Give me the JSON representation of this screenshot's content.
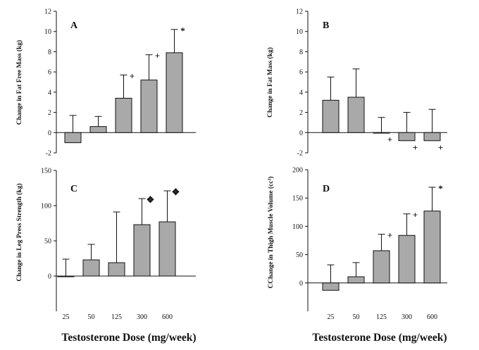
{
  "x_axis_titles": [
    "Testosterone Dose (mg/week)",
    "Testosterone Dose (mg/week)"
  ],
  "chart_data": [
    {
      "type": "bar",
      "panel_label": "A",
      "categories": [
        "25",
        "50",
        "125",
        "300",
        "600"
      ],
      "values": [
        -1.0,
        0.6,
        3.4,
        5.2,
        7.9
      ],
      "error_plus": [
        1.7,
        1.0,
        2.3,
        2.5,
        2.3
      ],
      "markers": [
        "",
        "",
        "+",
        "+",
        "*"
      ],
      "ylabel": "Change in Fat Free Mass (kg)",
      "ylim": [
        -2,
        12
      ],
      "yticks": [
        -2,
        0,
        2,
        4,
        6,
        8,
        10,
        12
      ],
      "show_xtick_labels": false,
      "bar_color": "#a9a9a9"
    },
    {
      "type": "bar",
      "panel_label": "B",
      "categories": [
        "25",
        "50",
        "125",
        "300",
        "600"
      ],
      "values": [
        3.2,
        3.5,
        0.0,
        -0.8,
        -0.8
      ],
      "error_plus": [
        2.3,
        2.8,
        1.5,
        2.0,
        2.3
      ],
      "markers": [
        "",
        "",
        "+",
        "+",
        "+"
      ],
      "ylabel": "Change in Fat Mass (kg)",
      "ylim": [
        -2,
        12
      ],
      "yticks": [
        -2,
        0,
        2,
        4,
        6,
        8,
        10,
        12
      ],
      "show_xtick_labels": false,
      "bar_color": "#a9a9a9"
    },
    {
      "type": "bar",
      "panel_label": "C",
      "categories": [
        "25",
        "50",
        "125",
        "300",
        "600"
      ],
      "values": [
        -1,
        23,
        19,
        73,
        77
      ],
      "error_plus": [
        24,
        22,
        72,
        37,
        44
      ],
      "markers": [
        "",
        "",
        "",
        "❖",
        "❖"
      ],
      "ylabel": "Change in Leg Press Strength (kg)",
      "ylim": [
        -50,
        150
      ],
      "yticks": [
        0,
        50,
        100,
        150
      ],
      "show_xtick_labels": true,
      "bar_color": "#a9a9a9"
    },
    {
      "type": "bar",
      "panel_label": "D",
      "categories": [
        "25",
        "50",
        "125",
        "300",
        "600"
      ],
      "values": [
        -13,
        11,
        57,
        84,
        127
      ],
      "error_plus": [
        32,
        25,
        29,
        38,
        42
      ],
      "markers": [
        "",
        "",
        "+",
        "+",
        "*"
      ],
      "ylabel": "CChange in Thigh Muscle Volume (cc³)",
      "ylim": [
        -50,
        200
      ],
      "yticks": [
        0,
        50,
        100,
        150,
        200
      ],
      "show_xtick_labels": true,
      "bar_color": "#a9a9a9"
    }
  ]
}
